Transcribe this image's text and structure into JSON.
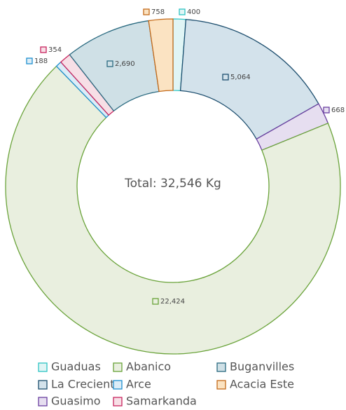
{
  "chart_data": {
    "type": "donut",
    "center_label": "Total: 32,546 Kg",
    "series": [
      {
        "name": "Guaduas",
        "color": "#2ec4c4",
        "fill": "#e0f5f5",
        "values": [
          400
        ],
        "value_labels": [
          "400"
        ]
      },
      {
        "name": "La Creciente",
        "color": "#1d4e6e",
        "fill": "#d3e2eb",
        "values": [
          5064
        ],
        "value_labels": [
          "5,064"
        ]
      },
      {
        "name": "Guasimo",
        "color": "#6a3fa0",
        "fill": "#e6def0",
        "values": [
          668
        ],
        "value_labels": [
          "668"
        ]
      },
      {
        "name": "Abanico",
        "color": "#6aa33a",
        "fill": "#e9efdf",
        "values": [
          22424
        ],
        "value_labels": [
          "22,424"
        ]
      },
      {
        "name": "Arce",
        "color": "#1e8fcf",
        "fill": "#dcedf7",
        "values": [
          188
        ],
        "value_labels": [
          "188"
        ]
      },
      {
        "name": "Samarkanda",
        "color": "#c8245e",
        "fill": "#f7dfe6",
        "values": [
          354
        ],
        "value_labels": [
          "354"
        ]
      },
      {
        "name": "Buganvilles",
        "color": "#2a6a80",
        "fill": "#cfe0e6",
        "values": [
          2690
        ],
        "value_labels": [
          "2,690"
        ]
      },
      {
        "name": "Acacia Este",
        "color": "#c46a1a",
        "fill": "#fbe3c2",
        "values": [
          758
        ],
        "value_labels": [
          "758"
        ]
      }
    ]
  }
}
